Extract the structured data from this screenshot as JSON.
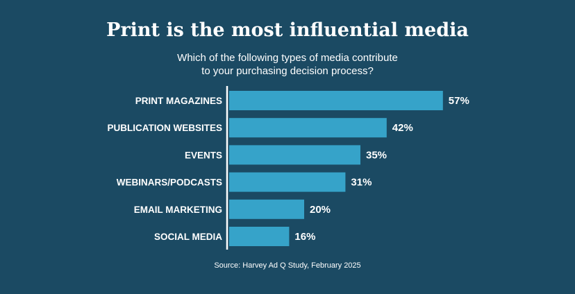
{
  "colors": {
    "background": "#1b4a63",
    "bar": "#36a3c9",
    "axis": "#ffffff",
    "text": "#ffffff"
  },
  "chart_data": {
    "type": "bar",
    "orientation": "horizontal",
    "title": "Print is the most influential media",
    "subtitle_lines": [
      "Which of the following types of media contribute",
      "to your purchasing decision process?"
    ],
    "categories": [
      "PRINT MAGAZINES",
      "PUBLICATION WEBSITES",
      "EVENTS",
      "WEBINARS/PODCASTS",
      "EMAIL MARKETING",
      "SOCIAL MEDIA"
    ],
    "values": [
      57,
      42,
      35,
      31,
      20,
      16
    ],
    "value_labels": [
      "57%",
      "42%",
      "35%",
      "31%",
      "20%",
      "16%"
    ],
    "grid": false,
    "legend": "none"
  },
  "source": "Source: Harvey Ad Q Study, February 2025"
}
